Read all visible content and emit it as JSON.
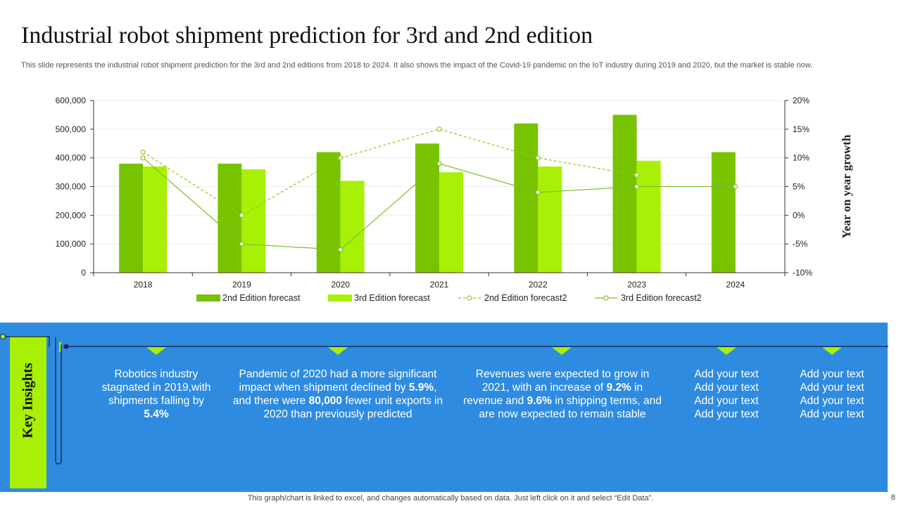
{
  "slide": {
    "title": "Industrial robot shipment prediction for 3rd and 2nd edition",
    "subtitle": "This slide represents the industrial robot shipment prediction for the 3rd and 2nd editions from 2018 to 2024. It also shows the impact of the Covid-19 pandemic on the IoT industry during 2019 and 2020, but the market is stable now.",
    "footer": "This graph/chart is linked to excel,  and changes automatically based on data. Just left click on it and select “Edit Data”.",
    "page_number": "8"
  },
  "colors": {
    "bar_2nd": "#78c300",
    "bar_3rd": "#a8f006",
    "line_2nd": "#8ccd1a",
    "line_3rd": "#7cbf2a",
    "panel_blue": "#2e8be0",
    "accent_green": "#a8f006"
  },
  "chart_data": {
    "type": "bar",
    "categories": [
      "2018",
      "2019",
      "2020",
      "2021",
      "2022",
      "2023",
      "2024"
    ],
    "series": [
      {
        "name": "2nd Edition forecast",
        "kind": "bar",
        "axis": "left",
        "values": [
          380000,
          380000,
          420000,
          450000,
          520000,
          550000,
          420000
        ]
      },
      {
        "name": "3rd Edition forecast",
        "kind": "bar",
        "axis": "left",
        "values": [
          370000,
          360000,
          320000,
          350000,
          370000,
          390000,
          null
        ]
      },
      {
        "name": "2nd Edition forecast2",
        "kind": "line",
        "style": "dashed",
        "axis": "right",
        "values": [
          11,
          0,
          10,
          15,
          10,
          7,
          null
        ]
      },
      {
        "name": "3rd Edition forecast2",
        "kind": "line",
        "style": "solid",
        "axis": "right",
        "values": [
          10,
          -5,
          -6,
          9,
          4,
          5,
          5
        ]
      }
    ],
    "y_left": {
      "min": 0,
      "max": 600000,
      "ticks": [
        "0",
        "100,000",
        "200,000",
        "300,000",
        "400,000",
        "500,000",
        "600,000"
      ]
    },
    "y_right": {
      "min": -10,
      "max": 20,
      "label": "Year on year growth",
      "ticks": [
        "-10%",
        "-5%",
        "0%",
        "5%",
        "10%",
        "15%",
        "20%"
      ]
    },
    "grid": true,
    "legend_position": "bottom"
  },
  "insights": {
    "label": "Key Insights",
    "col1": {
      "t1": "Robotics industry stagnated in 2019,with shipments falling by ",
      "b1": "5.4%",
      "t2": ""
    },
    "col2": {
      "t1": "Pandemic of 2020 had a more significant impact when shipment declined by ",
      "b1": "5.9%",
      "t2": ", and there were ",
      "b2": "80,000",
      "t3": " fewer unit exports in 2020 than previously predicted"
    },
    "col3": {
      "t1": "Revenues were expected to grow in 2021, with an increase of ",
      "b1": "9.2%",
      "t2": " in revenue  and ",
      "b2": "9.6%",
      "t3": " in shipping terms, and are now expected to remain stable"
    },
    "col4": [
      "Add your text",
      "Add your text",
      "Add your text",
      "Add your text"
    ],
    "col5": [
      "Add your text",
      "Add your text",
      "Add your text",
      "Add your text"
    ]
  }
}
